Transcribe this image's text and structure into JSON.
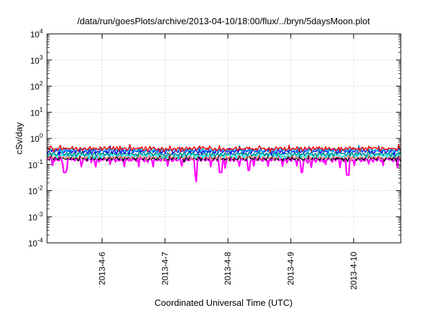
{
  "chart_data": {
    "type": "line",
    "title": "/data/run/goesPlots/archive/2013-04-10/18:00/flux/../bryn/5daysMoon.plot",
    "xlabel": "Coordinated Universal Time (UTC)",
    "ylabel": "cSv/day",
    "y_scale": "log",
    "ylim": [
      0.0001,
      10000
    ],
    "y_ticks": [
      {
        "base": "10",
        "exp": "-4"
      },
      {
        "base": "10",
        "exp": "-3"
      },
      {
        "base": "10",
        "exp": "-2"
      },
      {
        "base": "10",
        "exp": "-1"
      },
      {
        "base": "10",
        "exp": "0"
      },
      {
        "base": "10",
        "exp": "1"
      },
      {
        "base": "10",
        "exp": "2"
      },
      {
        "base": "10",
        "exp": "3"
      },
      {
        "base": "10",
        "exp": "4"
      }
    ],
    "xlim": [
      "2013-04-05 03:00",
      "2013-04-10 18:00"
    ],
    "x_ticks": [
      "2013-4-6",
      "2013-4-7",
      "2013-4-8",
      "2013-4-9",
      "2013-4-10"
    ],
    "grid": true,
    "series_colors": [
      "#ff00ff",
      "#000000",
      "#ff8080",
      "#00ffff",
      "#008080",
      "#0000ff",
      "#00aaff",
      "#ff0000"
    ],
    "series": [
      {
        "approx_mean": 0.15,
        "dips_to": [
          0.05,
          0.04,
          0.05,
          0.06
        ]
      },
      {
        "approx_mean": 0.17
      },
      {
        "approx_mean": 0.19
      },
      {
        "approx_mean": 0.22
      },
      {
        "approx_mean": 0.25
      },
      {
        "approx_mean": 0.32
      },
      {
        "approx_mean": 0.36
      },
      {
        "approx_mean": 0.4
      }
    ]
  }
}
